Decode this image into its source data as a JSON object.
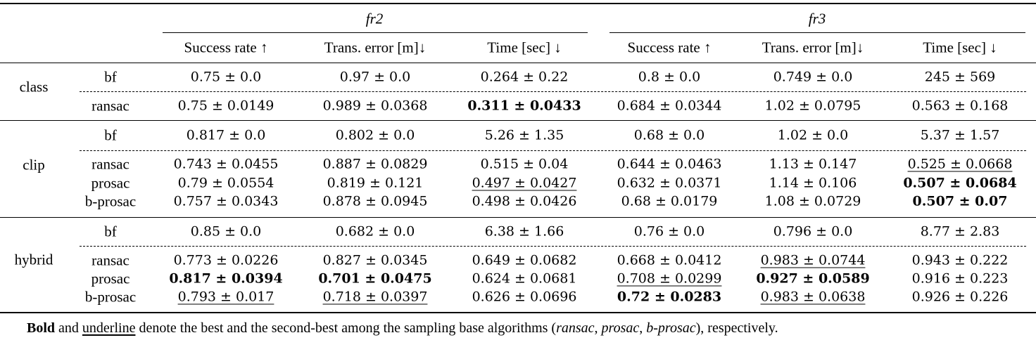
{
  "groups": [
    "fr2",
    "fr3"
  ],
  "columns": [
    "Success rate ↑",
    "Trans. error [m]↓",
    "Time [sec] ↓",
    "Success rate ↑",
    "Trans. error [m]↓",
    "Time [sec] ↓"
  ],
  "sections": [
    {
      "name": "class",
      "rows": [
        {
          "method": "bf",
          "cells": [
            {
              "v": "0.75 ± 0.0",
              "s": ""
            },
            {
              "v": "0.97 ± 0.0",
              "s": ""
            },
            {
              "v": "0.264 ± 0.22",
              "s": ""
            },
            {
              "v": "0.8 ± 0.0",
              "s": ""
            },
            {
              "v": "0.749 ± 0.0",
              "s": ""
            },
            {
              "v": "245 ± 569",
              "s": ""
            }
          ]
        },
        {
          "method": "ransac",
          "cells": [
            {
              "v": "0.75 ± 0.0149",
              "s": ""
            },
            {
              "v": "0.989 ± 0.0368",
              "s": ""
            },
            {
              "v": "0.311 ± 0.0433",
              "s": "bold"
            },
            {
              "v": "0.684 ± 0.0344",
              "s": ""
            },
            {
              "v": "1.02 ± 0.0795",
              "s": ""
            },
            {
              "v": "0.563 ± 0.168",
              "s": ""
            }
          ]
        }
      ]
    },
    {
      "name": "clip",
      "rows": [
        {
          "method": "bf",
          "cells": [
            {
              "v": "0.817 ± 0.0",
              "s": ""
            },
            {
              "v": "0.802 ± 0.0",
              "s": ""
            },
            {
              "v": "5.26 ± 1.35",
              "s": ""
            },
            {
              "v": "0.68 ± 0.0",
              "s": ""
            },
            {
              "v": "1.02 ± 0.0",
              "s": ""
            },
            {
              "v": "5.37 ± 1.57",
              "s": ""
            }
          ]
        },
        {
          "method": "ransac",
          "cells": [
            {
              "v": "0.743 ± 0.0455",
              "s": ""
            },
            {
              "v": "0.887 ± 0.0829",
              "s": ""
            },
            {
              "v": "0.515 ± 0.04",
              "s": ""
            },
            {
              "v": "0.644 ± 0.0463",
              "s": ""
            },
            {
              "v": "1.13 ± 0.147",
              "s": ""
            },
            {
              "v": "0.525 ± 0.0668",
              "s": "underline"
            }
          ]
        },
        {
          "method": "prosac",
          "cells": [
            {
              "v": "0.79 ± 0.0554",
              "s": ""
            },
            {
              "v": "0.819 ± 0.121",
              "s": ""
            },
            {
              "v": "0.497 ± 0.0427",
              "s": "underline"
            },
            {
              "v": "0.632 ± 0.0371",
              "s": ""
            },
            {
              "v": "1.14 ± 0.106",
              "s": ""
            },
            {
              "v": "0.507 ± 0.0684",
              "s": "bold"
            }
          ]
        },
        {
          "method": "b-prosac",
          "cells": [
            {
              "v": "0.757 ± 0.0343",
              "s": ""
            },
            {
              "v": "0.878 ± 0.0945",
              "s": ""
            },
            {
              "v": "0.498 ± 0.0426",
              "s": ""
            },
            {
              "v": "0.68 ± 0.0179",
              "s": ""
            },
            {
              "v": "1.08 ± 0.0729",
              "s": ""
            },
            {
              "v": "0.507 ± 0.07",
              "s": "bold"
            }
          ]
        }
      ]
    },
    {
      "name": "hybrid",
      "rows": [
        {
          "method": "bf",
          "cells": [
            {
              "v": "0.85 ± 0.0",
              "s": ""
            },
            {
              "v": "0.682 ± 0.0",
              "s": ""
            },
            {
              "v": "6.38 ± 1.66",
              "s": ""
            },
            {
              "v": "0.76 ± 0.0",
              "s": ""
            },
            {
              "v": "0.796 ± 0.0",
              "s": ""
            },
            {
              "v": "8.77 ± 2.83",
              "s": ""
            }
          ]
        },
        {
          "method": "ransac",
          "cells": [
            {
              "v": "0.773 ± 0.0226",
              "s": ""
            },
            {
              "v": "0.827 ± 0.0345",
              "s": ""
            },
            {
              "v": "0.649 ± 0.0682",
              "s": ""
            },
            {
              "v": "0.668 ± 0.0412",
              "s": ""
            },
            {
              "v": "0.983 ± 0.0744",
              "s": "underline"
            },
            {
              "v": "0.943 ± 0.222",
              "s": ""
            }
          ]
        },
        {
          "method": "prosac",
          "cells": [
            {
              "v": "0.817 ± 0.0394",
              "s": "bold"
            },
            {
              "v": "0.701 ± 0.0475",
              "s": "bold"
            },
            {
              "v": "0.624 ± 0.0681",
              "s": ""
            },
            {
              "v": "0.708 ± 0.0299",
              "s": "underline"
            },
            {
              "v": "0.927 ± 0.0589",
              "s": "bold"
            },
            {
              "v": "0.916 ± 0.223",
              "s": ""
            }
          ]
        },
        {
          "method": "b-prosac",
          "cells": [
            {
              "v": "0.793 ± 0.017",
              "s": "underline"
            },
            {
              "v": "0.718 ± 0.0397",
              "s": "underline"
            },
            {
              "v": "0.626 ± 0.0696",
              "s": ""
            },
            {
              "v": "0.72 ± 0.0283",
              "s": "bold"
            },
            {
              "v": "0.983 ± 0.0638",
              "s": "underline"
            },
            {
              "v": "0.926 ± 0.226",
              "s": ""
            }
          ]
        }
      ]
    }
  ],
  "footnote": {
    "bold_word": "Bold",
    "and_word": "and",
    "underline_word": "underline",
    "text_before": "denote the best and the second-best among the sampling base algorithms (",
    "alg1": "ransac",
    "sep1": ", ",
    "alg2": "prosac",
    "sep2": ", ",
    "alg3": "b-prosac",
    "text_after": "), respectively."
  }
}
